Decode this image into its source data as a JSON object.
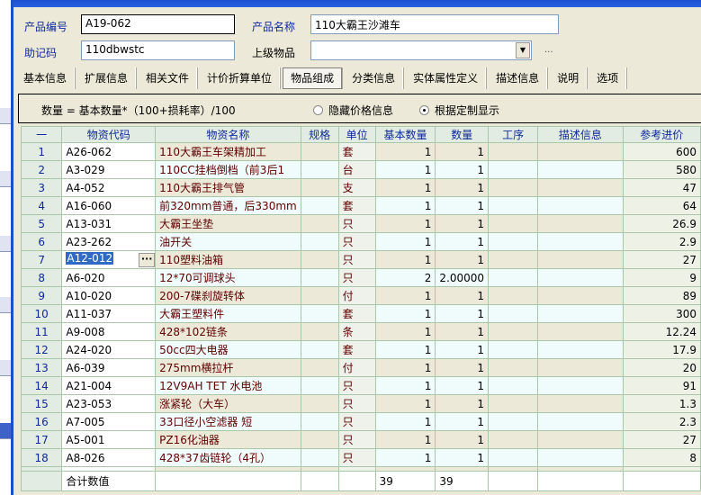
{
  "form": {
    "product_code_label": "产品编号",
    "product_code": "A19-062",
    "product_name_label": "产品名称",
    "product_name": "110大霸王沙滩车",
    "mnemonic_label": "助记码",
    "mnemonic": "110dbwstc",
    "parent_label": "上级物品",
    "parent": "",
    "more": "..."
  },
  "tabs": [
    "基本信息",
    "扩展信息",
    "相关文件",
    "计价折算单位",
    "物品组成",
    "分类信息",
    "实体属性定义",
    "描述信息",
    "说明",
    "选项"
  ],
  "active_tab": "物品组成",
  "formula": {
    "text": "数量 = 基本数量*（100+损耗率）/100",
    "radio_hide": "隐藏价格信息",
    "radio_custom": "根据定制显示",
    "selected": "根据定制显示"
  },
  "grid": {
    "headers": [
      "一",
      "物资代码",
      "物资名称",
      "规格",
      "单位",
      "基本数量",
      "数量",
      "工序",
      "描述信息",
      "参考进价"
    ],
    "rows": [
      [
        "1",
        "A26-062",
        "110大霸王车架精加工",
        "",
        "套",
        "1",
        "1",
        "",
        "",
        "600"
      ],
      [
        "2",
        "A3-029",
        "110CC挂档倒档（前3后1",
        "",
        "台",
        "1",
        "1",
        "",
        "",
        "580"
      ],
      [
        "3",
        "A4-052",
        "110大霸王排气管",
        "",
        "支",
        "1",
        "1",
        "",
        "",
        "47"
      ],
      [
        "4",
        "A16-060",
        "前320mm普通，后330mm",
        "",
        "套",
        "1",
        "1",
        "",
        "",
        "64"
      ],
      [
        "5",
        "A13-031",
        "大霸王坐垫",
        "",
        "只",
        "1",
        "1",
        "",
        "",
        "26.9"
      ],
      [
        "6",
        "A23-262",
        "油开关",
        "",
        "只",
        "1",
        "1",
        "",
        "",
        "2.9"
      ],
      [
        "7",
        "A12-012",
        "110塑料油箱",
        "",
        "只",
        "1",
        "1",
        "",
        "",
        "27"
      ],
      [
        "8",
        "A6-020",
        "12*70可调球头",
        "",
        "只",
        "2",
        "2.00000",
        "",
        "",
        "9"
      ],
      [
        "9",
        "A10-020",
        "200-7碟刹旋转体",
        "",
        "付",
        "1",
        "1",
        "",
        "",
        "89"
      ],
      [
        "10",
        "A11-037",
        "大霸王塑料件",
        "",
        "套",
        "1",
        "1",
        "",
        "",
        "300"
      ],
      [
        "11",
        "A9-008",
        "428*102链条",
        "",
        "条",
        "1",
        "1",
        "",
        "",
        "12.24"
      ],
      [
        "12",
        "A24-020",
        "50cc四大电器",
        "",
        "套",
        "1",
        "1",
        "",
        "",
        "17.9"
      ],
      [
        "13",
        "A6-039",
        "275mm横拉杆",
        "",
        "付",
        "1",
        "1",
        "",
        "",
        "20"
      ],
      [
        "14",
        "A21-004",
        "12V9AH TET 水电池",
        "",
        "只",
        "1",
        "1",
        "",
        "",
        "91"
      ],
      [
        "15",
        "A23-053",
        "涨紧轮（大车）",
        "",
        "只",
        "1",
        "1",
        "",
        "",
        "1.3"
      ],
      [
        "16",
        "A7-005",
        "33口径小空滤器 短",
        "",
        "只",
        "1",
        "1",
        "",
        "",
        "2.3"
      ],
      [
        "17",
        "A5-001",
        "PZ16化油器",
        "",
        "只",
        "1",
        "1",
        "",
        "",
        "27"
      ],
      [
        "18",
        "A8-026",
        "428*37齿链轮（4孔）",
        "",
        "只",
        "1",
        "1",
        "",
        "",
        "8"
      ]
    ],
    "selected_row": "7",
    "total": {
      "label": "合计数值",
      "base_qty": "39",
      "qty": "39"
    }
  }
}
